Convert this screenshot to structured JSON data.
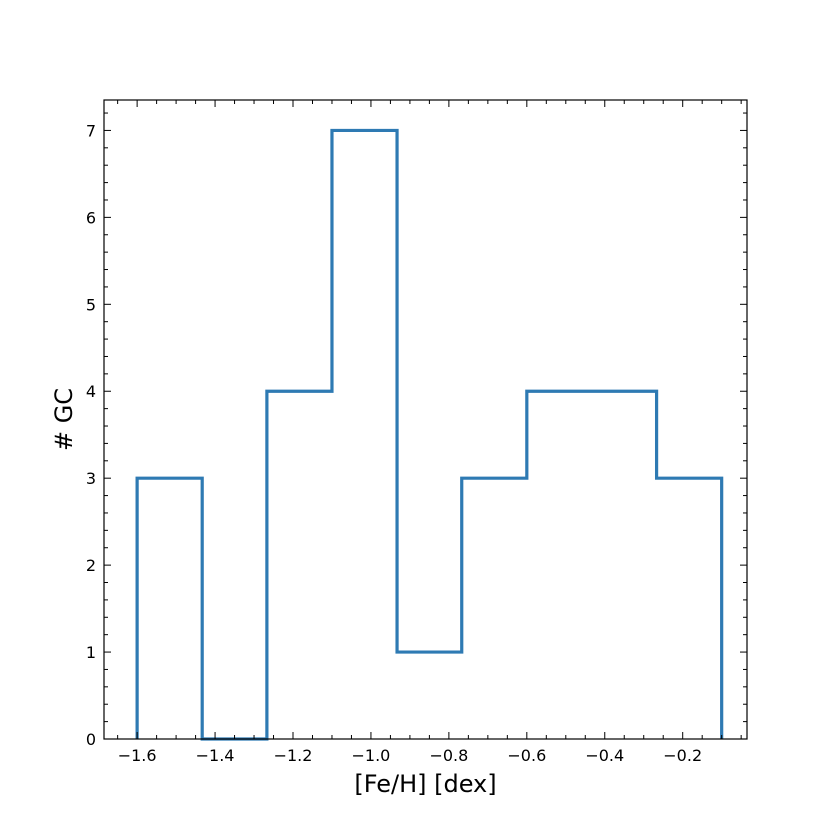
{
  "chart_data": {
    "type": "histogram",
    "style": "step",
    "xlabel": "[Fe/H] [dex]",
    "ylabel": "# GC",
    "xlim": [
      -1.685,
      -0.035
    ],
    "ylim": [
      0,
      7.35
    ],
    "bin_edges": [
      -1.6,
      -1.433,
      -1.267,
      -1.1,
      -0.933,
      -0.767,
      -0.6,
      -0.433,
      -0.267,
      -0.1
    ],
    "counts": [
      3,
      0,
      4,
      7,
      1,
      3,
      4,
      4,
      3
    ],
    "x_ticks": [
      -1.6,
      -1.4,
      -1.2,
      -1.0,
      -0.8,
      -0.6,
      -0.4,
      -0.2
    ],
    "x_tick_labels": [
      "−1.6",
      "−1.4",
      "−1.2",
      "−1.0",
      "−0.8",
      "−0.6",
      "−0.4",
      "−0.2"
    ],
    "y_ticks": [
      0,
      1,
      2,
      3,
      4,
      5,
      6,
      7
    ],
    "y_tick_labels": [
      "0",
      "1",
      "2",
      "3",
      "4",
      "5",
      "6",
      "7"
    ],
    "x_minor_step": 0.05,
    "y_minor_step": 0.2,
    "tick_direction": "in",
    "ticks_on_all_sides": true,
    "grid": false,
    "line_color": "#2e7ab3"
  }
}
